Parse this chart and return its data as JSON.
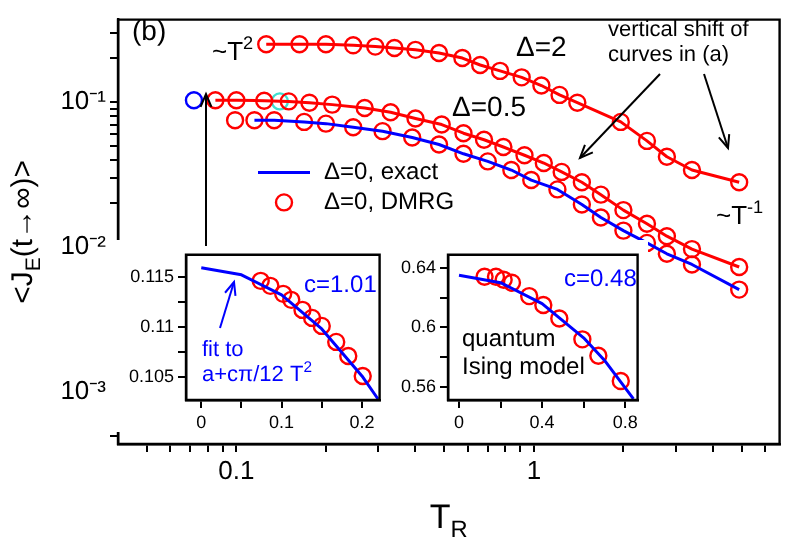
{
  "chart_data": [
    {
      "type": "line",
      "xlabel": "T$_{R}$",
      "ylabel": "<J$_{E}$(t→∞)>",
      "log": "xy",
      "legend": "center left",
      "annotations": [
        "(b)",
        "~T$^{2}$",
        "Δ=2",
        "Δ=0.5",
        "vertical shift of curves in (a)",
        "~T$^{-1}$"
      ],
      "xlim": [
        0.04,
        6.7
      ],
      "ylim": [
        0.00044,
        0.37
      ],
      "xticks": [
        {
          "value": 0.05,
          "label": null
        },
        {
          "value": 0.06,
          "label": null
        },
        {
          "value": 0.07,
          "label": null
        },
        {
          "value": 0.08,
          "label": null
        },
        {
          "value": 0.09,
          "label": null
        },
        0.1,
        {
          "value": 0.2,
          "label": null
        },
        {
          "value": 0.3,
          "label": null
        },
        {
          "value": 0.4,
          "label": null
        },
        {
          "value": 0.5,
          "label": null
        },
        {
          "value": 0.6,
          "label": null
        },
        {
          "value": 0.7,
          "label": null
        },
        {
          "value": 0.8,
          "label": null
        },
        {
          "value": 0.9,
          "label": null
        },
        1,
        {
          "value": 2,
          "label": null
        },
        {
          "value": 3,
          "label": null
        },
        {
          "value": 4,
          "label": null
        },
        {
          "value": 5,
          "label": null
        },
        {
          "value": 6,
          "label": null
        }
      ],
      "yticks": [
        {
          "value": 0.0005,
          "label": null
        },
        {
          "value": 0.0006,
          "label": null
        },
        {
          "value": 0.0007,
          "label": null
        },
        {
          "value": 0.0008,
          "label": null
        },
        {
          "value": 0.0009,
          "label": null
        },
        {
          "value": 0.001,
          "label": "10⁻³"
        },
        {
          "value": 0.002,
          "label": null
        },
        {
          "value": 0.003,
          "label": null
        },
        {
          "value": 0.004,
          "label": null
        },
        {
          "value": 0.005,
          "label": null
        },
        {
          "value": 0.006,
          "label": null
        },
        {
          "value": 0.007,
          "label": null
        },
        {
          "value": 0.008,
          "label": null
        },
        {
          "value": 0.009,
          "label": null
        },
        {
          "value": 0.01,
          "label": "10⁻²"
        },
        {
          "value": 0.02,
          "label": null
        },
        {
          "value": 0.03,
          "label": null
        },
        {
          "value": 0.04,
          "label": null
        },
        {
          "value": 0.05,
          "label": null
        },
        {
          "value": 0.06,
          "label": null
        },
        {
          "value": 0.07,
          "label": null
        },
        {
          "value": 0.08,
          "label": null
        },
        {
          "value": 0.09,
          "label": null
        },
        {
          "value": 0.1,
          "label": "10⁻¹"
        },
        {
          "value": 0.2,
          "label": null
        },
        {
          "value": 0.3,
          "label": null
        }
      ],
      "series": [
        {
          "type": "line",
          "marker": "circle",
          "color": "#ff0000",
          "x": [
            0.126,
            0.163,
            0.2,
            0.247,
            0.293,
            0.34,
            0.4,
            0.48,
            0.575,
            0.66,
            0.77,
            0.91,
            1.06,
            1.22,
            1.4,
            1.96,
            2.4,
            2.8,
            3.4,
            4.9
          ],
          "values": [
            0.25,
            0.25,
            0.25,
            0.246,
            0.241,
            0.236,
            0.229,
            0.218,
            0.201,
            0.18,
            0.164,
            0.148,
            0.13,
            0.112,
            0.099,
            0.073,
            0.054,
            0.042,
            0.034,
            0.028
          ]
        },
        {
          "type": "line",
          "marker": "circle",
          "color": "#ff0000",
          "x": [
            0.085,
            0.1,
            0.124,
            0.15,
            0.176,
            0.21,
            0.27,
            0.33,
            0.4,
            0.49,
            0.58,
            0.68,
            0.79,
            0.93,
            1.08,
            1.24,
            1.45,
            1.68,
            2.0,
            2.4,
            2.8,
            3.4,
            4.9
          ],
          "values": [
            0.103,
            0.103,
            0.102,
            0.101,
            0.099,
            0.096,
            0.091,
            0.085,
            0.077,
            0.07,
            0.061,
            0.055,
            0.049,
            0.043,
            0.038,
            0.033,
            0.028,
            0.023,
            0.018,
            0.0145,
            0.0119,
            0.0097,
            0.0073
          ]
        },
        {
          "type": "scatter",
          "marker": "circle",
          "color": "#0000ff",
          "x": [
            0.072
          ],
          "values": [
            0.103
          ]
        },
        {
          "type": "scatter",
          "marker": "circle",
          "color": "#40e0d0",
          "x": [
            0.14
          ],
          "values": [
            0.101
          ]
        },
        {
          "type": "line",
          "name": "Δ=0, exact",
          "marker": "none",
          "color": "#0000ff",
          "x": [
            0.115,
            0.134,
            0.169,
            0.2,
            0.247,
            0.31,
            0.39,
            0.48,
            0.58,
            0.7,
            0.84,
            0.98,
            1.2,
            1.45,
            1.68,
            2.0,
            2.4,
            2.8,
            3.4,
            4.9
          ],
          "values": [
            0.075,
            0.075,
            0.073,
            0.071,
            0.067,
            0.063,
            0.057,
            0.051,
            0.044,
            0.039,
            0.034,
            0.029,
            0.025,
            0.0197,
            0.016,
            0.013,
            0.0107,
            0.009,
            0.0076,
            0.0051
          ]
        },
        {
          "type": "scatter",
          "name": "Δ=0, DMRG",
          "marker": "circle",
          "color": "#ff0000",
          "x": [
            0.099,
            0.115,
            0.134,
            0.169,
            0.2,
            0.247,
            0.31,
            0.39,
            0.48,
            0.58,
            0.7,
            0.84,
            0.98,
            1.2,
            1.45,
            1.68,
            2.0,
            2.4,
            2.8,
            3.4,
            4.9
          ],
          "values": [
            0.075,
            0.075,
            0.075,
            0.073,
            0.071,
            0.067,
            0.063,
            0.057,
            0.051,
            0.044,
            0.039,
            0.034,
            0.029,
            0.025,
            0.0197,
            0.016,
            0.013,
            0.0107,
            0.009,
            0.0076,
            0.0051
          ]
        }
      ]
    },
    {
      "type": "line",
      "annotations": [
        "c=1.01",
        "fit to a+cπ/12 T$^{2}$"
      ],
      "xlim": [
        -0.019,
        0.222
      ],
      "ylim": [
        0.1027,
        0.1172
      ],
      "xticks": [
        0,
        {
          "value": 0.05,
          "label": null
        },
        0.1,
        {
          "value": 0.15,
          "label": null
        },
        0.2
      ],
      "yticks": [
        0.105,
        {
          "value": 0.1075,
          "label": null
        },
        0.11,
        {
          "value": 0.1125,
          "label": null
        },
        0.115
      ],
      "series": [
        {
          "type": "line",
          "marker": "none",
          "color": "#0000ff",
          "x": [
            0,
            0.05,
            0.1,
            0.15,
            0.2,
            0.22
          ],
          "values": [
            0.1159,
            0.1152,
            0.1132,
            0.1098,
            0.1051,
            0.1028
          ]
        },
        {
          "type": "scatter",
          "marker": "circle",
          "color": "#ff0000",
          "x": [
            0.074,
            0.086,
            0.102,
            0.112,
            0.126,
            0.138,
            0.15,
            0.168,
            0.183,
            0.201
          ],
          "values": [
            0.1146,
            0.1141,
            0.1133,
            0.1127,
            0.1117,
            0.1109,
            0.1101,
            0.1085,
            0.1071,
            0.1051
          ]
        }
      ]
    },
    {
      "type": "line",
      "annotations": [
        "c=0.48",
        "quantum Ising model"
      ],
      "xlim": [
        -0.053,
        0.86
      ],
      "ylim": [
        0.5513,
        0.6487
      ],
      "xticks": [
        0,
        {
          "value": 0.2,
          "label": null
        },
        0.4,
        {
          "value": 0.6,
          "label": null
        },
        0.8
      ],
      "yticks": [
        0.56,
        {
          "value": 0.58,
          "label": null
        },
        0.6,
        {
          "value": 0.62,
          "label": null
        },
        0.64
      ],
      "series": [
        {
          "type": "line",
          "marker": "none",
          "color": "#0000ff",
          "x": [
            0,
            0.2,
            0.4,
            0.6,
            0.7,
            0.84
          ],
          "values": [
            0.635,
            0.63,
            0.616,
            0.593,
            0.578,
            0.552
          ]
        },
        {
          "type": "scatter",
          "marker": "circle",
          "color": "#ff0000",
          "x": [
            0.123,
            0.178,
            0.215,
            0.255,
            0.338,
            0.406,
            0.483,
            0.594,
            0.671,
            0.779
          ],
          "values": [
            0.634,
            0.634,
            0.632,
            0.63,
            0.621,
            0.615,
            0.606,
            0.592,
            0.581,
            0.564
          ]
        }
      ]
    }
  ]
}
